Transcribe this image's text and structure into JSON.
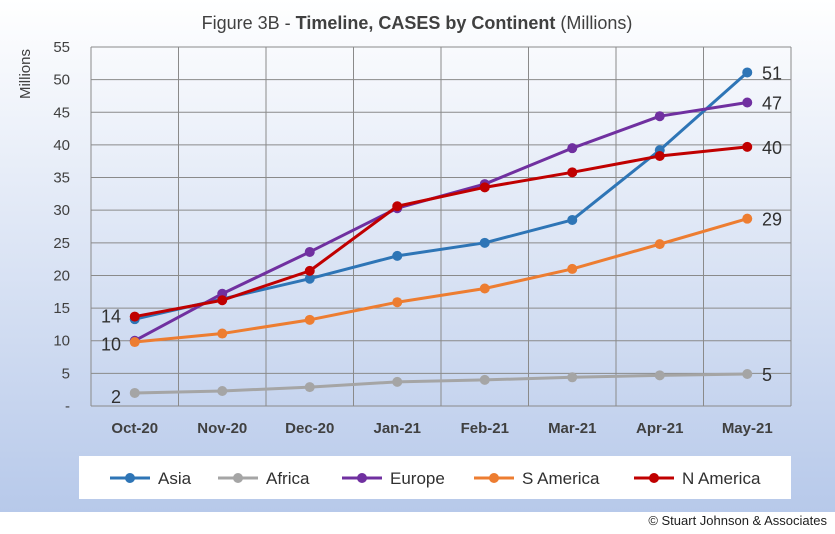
{
  "chart_data": {
    "type": "line",
    "title": {
      "prefix": "Figure 3B - ",
      "bold": "Timeline, CASES by Continent",
      "suffix": " (Millions)"
    },
    "ylabel": "Millions",
    "xlabel": "",
    "categories": [
      "Oct-20",
      "Nov-20",
      "Dec-20",
      "Jan-21",
      "Feb-21",
      "Mar-21",
      "Apr-21",
      "May-21"
    ],
    "ylim": [
      0,
      55
    ],
    "yticks": [
      0,
      5,
      10,
      15,
      20,
      25,
      30,
      35,
      40,
      45,
      50,
      55
    ],
    "ytick_labels": [
      "-",
      "5",
      "10",
      "15",
      "20",
      "25",
      "30",
      "35",
      "40",
      "45",
      "50",
      "55"
    ],
    "grid": true,
    "legend_position": "bottom",
    "series": [
      {
        "name": "Asia",
        "color": "#2E75B6",
        "values": [
          13.3,
          16.4,
          19.5,
          23.0,
          25.0,
          28.5,
          39.2,
          51.1
        ]
      },
      {
        "name": "Africa",
        "color": "#A5A5A5",
        "values": [
          2.0,
          2.3,
          2.9,
          3.7,
          4.0,
          4.4,
          4.7,
          4.9
        ]
      },
      {
        "name": "Europe",
        "color": "#7030A0",
        "values": [
          10.0,
          17.2,
          23.6,
          30.3,
          34.0,
          39.5,
          44.4,
          46.5
        ]
      },
      {
        "name": "S America",
        "color": "#ED7D31",
        "values": [
          9.8,
          11.1,
          13.2,
          15.9,
          18.0,
          21.0,
          24.8,
          28.7
        ]
      },
      {
        "name": "N America",
        "color": "#C00000",
        "values": [
          13.7,
          16.2,
          20.7,
          30.6,
          33.5,
          35.8,
          38.3,
          39.7
        ]
      }
    ],
    "start_labels": [
      "14",
      "10",
      "2"
    ],
    "end_labels": [
      "51",
      "47",
      "40",
      "29",
      "5"
    ]
  },
  "copyright": "© Stuart Johnson & Associates"
}
